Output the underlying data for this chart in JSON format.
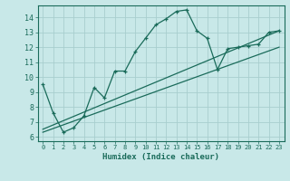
{
  "xlabel": "Humidex (Indice chaleur)",
  "bg_color": "#c8e8e8",
  "grid_color": "#a8cece",
  "line_color": "#1a6b5a",
  "xlim": [
    -0.5,
    23.5
  ],
  "ylim": [
    5.7,
    14.8
  ],
  "yticks": [
    6,
    7,
    8,
    9,
    10,
    11,
    12,
    13,
    14
  ],
  "xticks": [
    0,
    1,
    2,
    3,
    4,
    5,
    6,
    7,
    8,
    9,
    10,
    11,
    12,
    13,
    14,
    15,
    16,
    17,
    18,
    19,
    20,
    21,
    22,
    23
  ],
  "curve_x": [
    0,
    1,
    2,
    3,
    4,
    5,
    6,
    7,
    8,
    9,
    10,
    11,
    12,
    13,
    14,
    15,
    16,
    17,
    18,
    19,
    20,
    21,
    22,
    23
  ],
  "curve_y": [
    9.5,
    7.6,
    6.3,
    6.6,
    7.4,
    9.3,
    8.6,
    10.4,
    10.4,
    11.7,
    12.6,
    13.5,
    13.9,
    14.4,
    14.5,
    13.1,
    12.6,
    10.5,
    11.9,
    12.0,
    12.1,
    12.2,
    13.0,
    13.1
  ],
  "line1_x": [
    0,
    23
  ],
  "line1_y": [
    6.3,
    12.0
  ],
  "line2_x": [
    0,
    23
  ],
  "line2_y": [
    6.5,
    13.1
  ],
  "xlabel_fontsize": 6.5,
  "tick_fontsize": 5.0,
  "ytick_fontsize": 6.0
}
